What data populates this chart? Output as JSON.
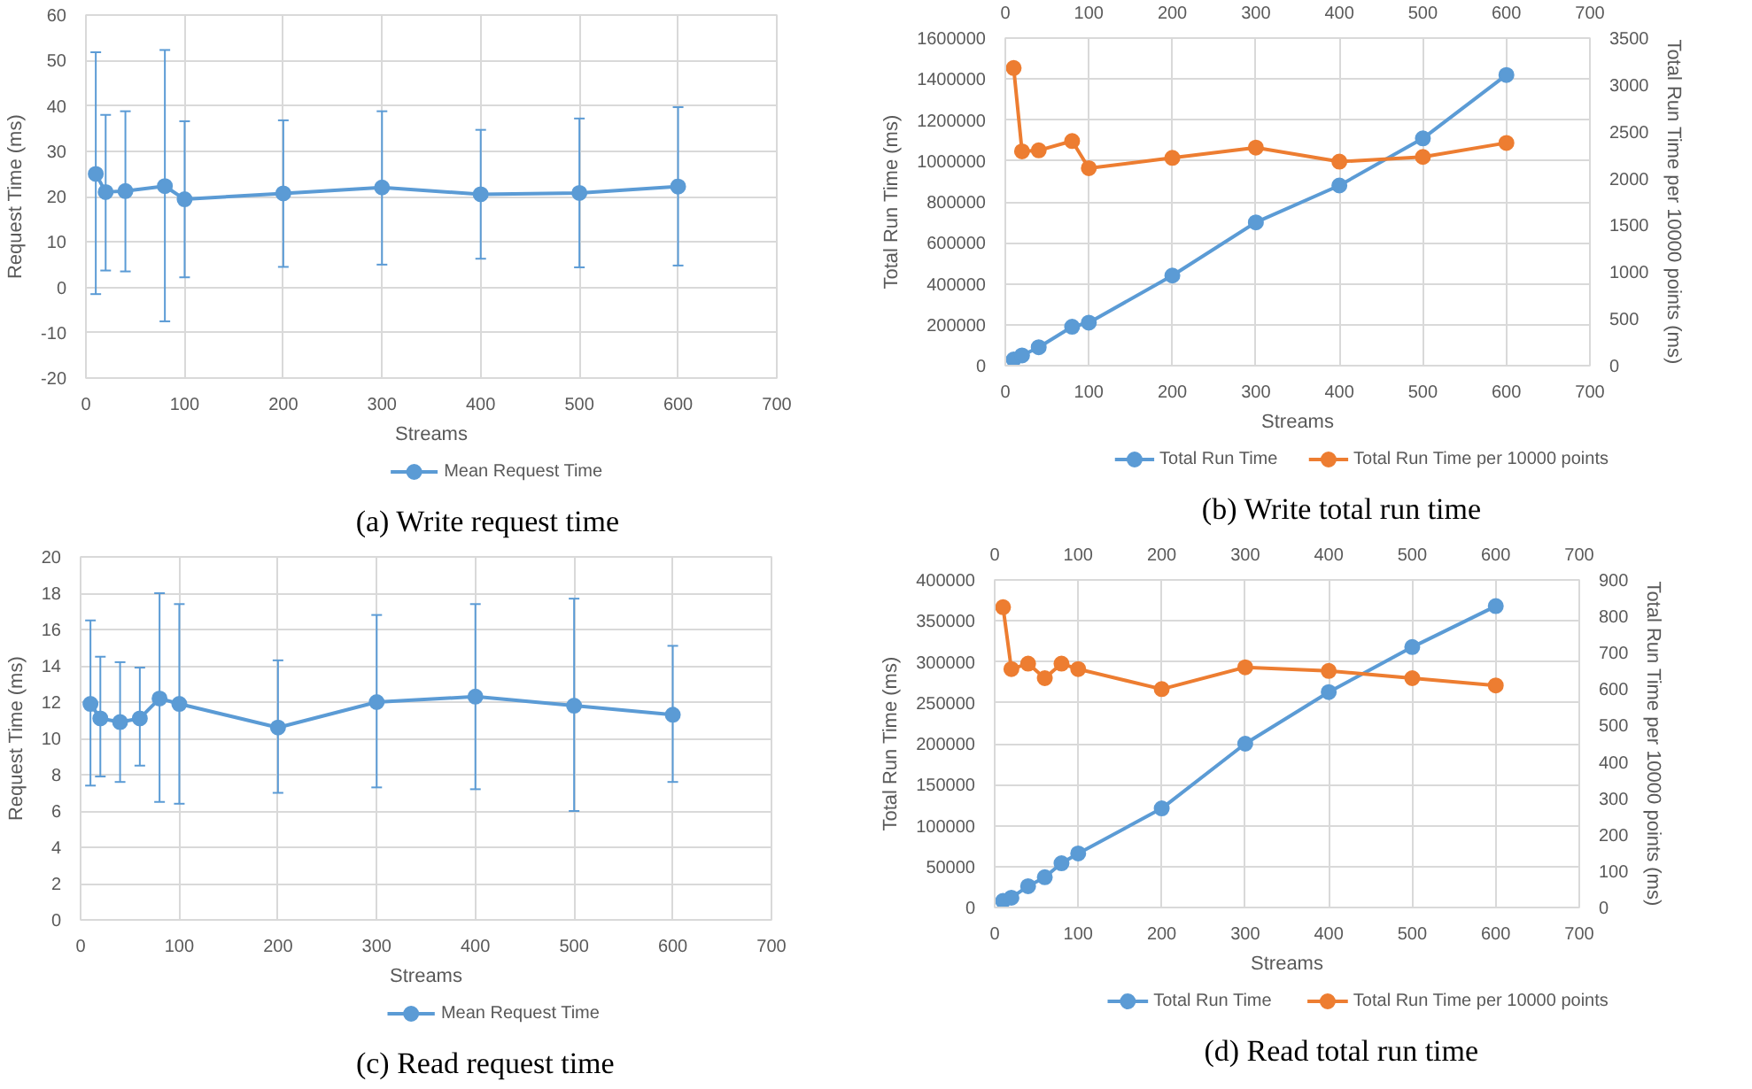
{
  "chart_data": [
    {
      "type": "line",
      "title": "(a) Write request time",
      "xlabel": "Streams",
      "ylabel": "Request Time (ms)",
      "x": [
        10,
        20,
        40,
        80,
        100,
        200,
        300,
        400,
        500,
        600
      ],
      "xlim": [
        0,
        700
      ],
      "xticks": [
        0,
        100,
        200,
        300,
        400,
        500,
        600,
        700
      ],
      "ylim": [
        -20,
        60
      ],
      "yticks": [
        -20,
        -10,
        0,
        10,
        20,
        30,
        40,
        50,
        60
      ],
      "grid": true,
      "legend": "bottom",
      "marker": "circle",
      "line_style": "solid",
      "series": [
        {
          "name": "Mean Request Time",
          "color": "#5b9bd5",
          "values": [
            25,
            21,
            21.2,
            22.3,
            19.4,
            20.7,
            22,
            20.5,
            20.8,
            22.2
          ],
          "errors": [
            [
              -1.5,
              51.8
            ],
            [
              3.7,
              38
            ],
            [
              3.5,
              38.8
            ],
            [
              -7.5,
              52.3
            ],
            [
              2.2,
              36.6
            ],
            [
              4.5,
              36.8
            ],
            [
              5,
              38.8
            ],
            [
              6.3,
              34.7
            ],
            [
              4.4,
              37.2
            ],
            [
              4.8,
              39.7
            ]
          ]
        }
      ]
    },
    {
      "type": "line",
      "title": "(b) Write total run time",
      "xlabel": "Streams",
      "ylabel": "Total Run Time (ms)",
      "y2label": "Total Run Time per 10000 points (ms)",
      "x": [
        10,
        20,
        40,
        80,
        100,
        200,
        300,
        400,
        500,
        600
      ],
      "xlim": [
        0,
        700
      ],
      "xticks": [
        0,
        100,
        200,
        300,
        400,
        500,
        600,
        700
      ],
      "x2lim": [
        0,
        700
      ],
      "x2ticks": [
        0,
        100,
        200,
        300,
        400,
        500,
        600,
        700
      ],
      "ylim": [
        0,
        1600000
      ],
      "yticks": [
        0,
        200000,
        400000,
        600000,
        800000,
        1000000,
        1200000,
        1400000,
        1600000
      ],
      "y2lim": [
        0,
        3500
      ],
      "y2ticks": [
        0,
        500,
        1000,
        1500,
        2000,
        2500,
        3000,
        3500
      ],
      "grid": true,
      "legend": "bottom",
      "marker": "circle",
      "line_style": "solid",
      "series": [
        {
          "name": "Total Run Time",
          "color": "#5b9bd5",
          "values": [
            30000,
            50000,
            90000,
            190000,
            210000,
            440000,
            700000,
            880000,
            1110000,
            1420000
          ]
        },
        {
          "name": "Total Run Time per 10000 points",
          "color": "#ed7d31",
          "axis": "y2",
          "values": [
            3180,
            2290,
            2300,
            2400,
            2110,
            2220,
            2330,
            2180,
            2230,
            2380
          ]
        }
      ]
    },
    {
      "type": "line",
      "title": "(c) Read request time",
      "xlabel": "Streams",
      "ylabel": "Request Time (ms)",
      "x": [
        10,
        20,
        40,
        60,
        80,
        100,
        200,
        300,
        400,
        500,
        600
      ],
      "xlim": [
        0,
        700
      ],
      "xticks": [
        0,
        100,
        200,
        300,
        400,
        500,
        600,
        700
      ],
      "ylim": [
        0,
        20
      ],
      "yticks": [
        0,
        2,
        4,
        6,
        8,
        10,
        12,
        14,
        16,
        18,
        20
      ],
      "grid": true,
      "legend": "bottom",
      "marker": "circle",
      "line_style": "solid",
      "series": [
        {
          "name": "Mean Request Time",
          "color": "#5b9bd5",
          "values": [
            11.9,
            11.1,
            10.9,
            11.1,
            12.2,
            11.9,
            10.6,
            12,
            12.3,
            11.8,
            11.3
          ],
          "errors": [
            [
              7.4,
              16.5
            ],
            [
              7.9,
              14.5
            ],
            [
              7.6,
              14.2
            ],
            [
              8.5,
              13.9
            ],
            [
              6.5,
              18
            ],
            [
              6.4,
              17.4
            ],
            [
              7,
              14.3
            ],
            [
              7.3,
              16.8
            ],
            [
              7.2,
              17.4
            ],
            [
              6,
              17.7
            ],
            [
              7.6,
              15.1
            ]
          ]
        }
      ]
    },
    {
      "type": "line",
      "title": "(d) Read total run time",
      "xlabel": "Streams",
      "ylabel": "Total Run Time (ms)",
      "y2label": "Total Run Time per 10000 points (ms)",
      "x": [
        10,
        20,
        40,
        60,
        80,
        100,
        200,
        300,
        400,
        500,
        600
      ],
      "xlim": [
        0,
        700
      ],
      "xticks": [
        0,
        100,
        200,
        300,
        400,
        500,
        600,
        700
      ],
      "x2lim": [
        0,
        700
      ],
      "x2ticks": [
        0,
        100,
        200,
        300,
        400,
        500,
        600,
        700
      ],
      "ylim": [
        0,
        400000
      ],
      "yticks": [
        0,
        50000,
        100000,
        150000,
        200000,
        250000,
        300000,
        350000,
        400000
      ],
      "y2lim": [
        0,
        900
      ],
      "y2ticks": [
        0,
        100,
        200,
        300,
        400,
        500,
        600,
        700,
        800,
        900
      ],
      "grid": true,
      "legend": "bottom",
      "marker": "circle",
      "line_style": "solid",
      "series": [
        {
          "name": "Total Run Time",
          "color": "#5b9bd5",
          "values": [
            8000,
            12000,
            26000,
            37000,
            54000,
            66000,
            121000,
            200000,
            263000,
            318000,
            368000
          ]
        },
        {
          "name": "Total Run Time per 10000 points",
          "color": "#ed7d31",
          "axis": "y2",
          "values": [
            825,
            655,
            670,
            630,
            670,
            655,
            600,
            660,
            650,
            630,
            610
          ]
        }
      ]
    }
  ]
}
